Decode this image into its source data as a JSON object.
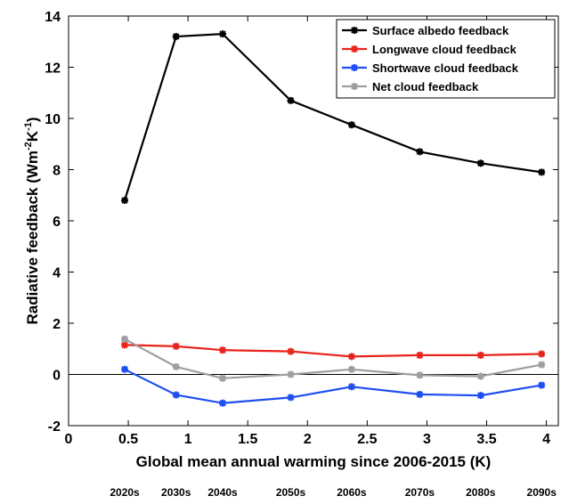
{
  "chart_data": {
    "type": "line",
    "xlabel": "Global mean annual warming since 2006-2015 (K)",
    "ylabel": "Radiative feedback (Wm",
    "ylabel_sup1": "-2",
    "ylabel_mid": "K",
    "ylabel_sup2": "-1",
    "ylabel_end": ")",
    "xlim": [
      0,
      4.1
    ],
    "ylim": [
      -2,
      14
    ],
    "xticks": [
      0,
      0.5,
      1,
      1.5,
      2,
      2.5,
      3,
      3.5,
      4
    ],
    "xtick_labels": [
      "0",
      "0.5",
      "1",
      "1.5",
      "2",
      "2.5",
      "3",
      "3.5",
      "4"
    ],
    "yticks": [
      -2,
      0,
      2,
      4,
      6,
      8,
      10,
      12,
      14
    ],
    "ytick_labels": [
      "-2",
      "0",
      "2",
      "4",
      "6",
      "8",
      "10",
      "12",
      "14"
    ],
    "x": [
      0.47,
      0.9,
      1.29,
      1.86,
      2.37,
      2.94,
      3.45,
      3.96
    ],
    "decades": [
      "2020s",
      "2030s",
      "2040s",
      "2050s",
      "2060s",
      "2070s",
      "2080s",
      "2090s"
    ],
    "grid": false,
    "zero_line": true,
    "legend_position": "top-right",
    "series": [
      {
        "name": "Surface albedo feedback",
        "color": "#000000",
        "values": [
          6.8,
          13.2,
          13.3,
          10.7,
          9.75,
          8.7,
          8.25,
          7.9
        ]
      },
      {
        "name": "Longwave cloud feedback",
        "color": "#e8231c",
        "values": [
          1.15,
          1.1,
          0.95,
          0.9,
          0.7,
          0.75,
          0.75,
          0.8
        ]
      },
      {
        "name": "Shortwave cloud feedback",
        "color": "#1f4ef0",
        "values": [
          0.2,
          -0.8,
          -1.12,
          -0.9,
          -0.48,
          -0.78,
          -0.82,
          -0.42
        ]
      },
      {
        "name": "Net cloud feedback",
        "color": "#9e9e9e",
        "values": [
          1.38,
          0.3,
          -0.15,
          0.0,
          0.2,
          -0.03,
          -0.07,
          0.38
        ]
      }
    ]
  }
}
